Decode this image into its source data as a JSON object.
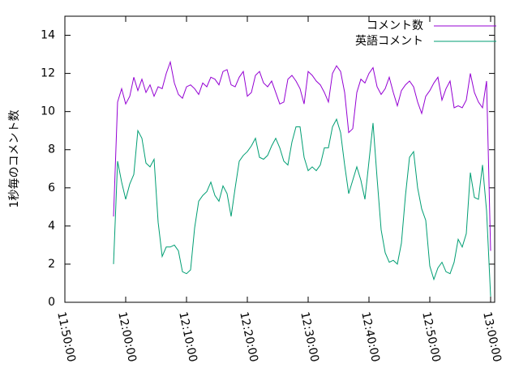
{
  "chart_data": {
    "type": "line",
    "ylabel": "1秒毎のコメント数",
    "x": [
      "11:58:00",
      "11:58:40",
      "11:59:20",
      "12:00:00",
      "12:00:40",
      "12:01:20",
      "12:02:00",
      "12:02:40",
      "12:03:20",
      "12:04:00",
      "12:04:40",
      "12:05:20",
      "12:06:00",
      "12:06:40",
      "12:07:20",
      "12:08:00",
      "12:08:40",
      "12:09:20",
      "12:10:00",
      "12:10:40",
      "12:11:20",
      "12:12:00",
      "12:12:40",
      "12:13:20",
      "12:14:00",
      "12:14:40",
      "12:15:20",
      "12:16:00",
      "12:16:40",
      "12:17:20",
      "12:18:00",
      "12:18:40",
      "12:19:20",
      "12:20:00",
      "12:20:40",
      "12:21:20",
      "12:22:00",
      "12:22:40",
      "12:23:20",
      "12:24:00",
      "12:24:40",
      "12:25:20",
      "12:26:00",
      "12:26:40",
      "12:27:20",
      "12:28:00",
      "12:28:40",
      "12:29:20",
      "12:30:00",
      "12:30:40",
      "12:31:20",
      "12:32:00",
      "12:32:40",
      "12:33:20",
      "12:34:00",
      "12:34:40",
      "12:35:20",
      "12:36:00",
      "12:36:40",
      "12:37:20",
      "12:38:00",
      "12:38:40",
      "12:39:20",
      "12:40:00",
      "12:40:40",
      "12:41:20",
      "12:42:00",
      "12:42:40",
      "12:43:20",
      "12:44:00",
      "12:44:40",
      "12:45:20",
      "12:46:00",
      "12:46:40",
      "12:47:20",
      "12:48:00",
      "12:48:40",
      "12:49:20",
      "12:50:00",
      "12:50:40",
      "12:51:20",
      "12:52:00",
      "12:52:40",
      "12:53:20",
      "12:54:00",
      "12:54:40",
      "12:55:20",
      "12:56:00",
      "12:56:40",
      "12:57:20",
      "12:58:00",
      "12:58:40",
      "12:59:20",
      "13:00:00"
    ],
    "series": [
      {
        "name": "コメント数",
        "color": "#9400d3",
        "values": [
          4.5,
          10.5,
          11.2,
          10.4,
          10.8,
          11.8,
          11.1,
          11.7,
          11.0,
          11.4,
          10.8,
          11.3,
          11.2,
          12.0,
          12.6,
          11.5,
          10.9,
          10.7,
          11.3,
          11.4,
          11.2,
          10.9,
          11.5,
          11.3,
          11.8,
          11.7,
          11.4,
          12.1,
          12.2,
          11.4,
          11.3,
          11.8,
          12.1,
          10.8,
          11.0,
          11.9,
          12.1,
          11.5,
          11.3,
          11.6,
          11.0,
          10.4,
          10.5,
          11.7,
          11.9,
          11.6,
          11.2,
          10.4,
          12.1,
          11.9,
          11.6,
          11.4,
          11.0,
          10.5,
          12.0,
          12.4,
          12.1,
          11.0,
          8.9,
          9.1,
          11.0,
          11.7,
          11.5,
          12.0,
          12.3,
          11.3,
          10.9,
          11.2,
          11.8,
          11.0,
          10.3,
          11.1,
          11.4,
          11.6,
          11.3,
          10.5,
          9.9,
          10.8,
          11.1,
          11.5,
          11.8,
          10.6,
          11.2,
          11.6,
          10.2,
          10.3,
          10.2,
          10.6,
          12.0,
          11.0,
          10.5,
          10.2,
          11.6,
          2.7
        ]
      },
      {
        "name": "英語コメント",
        "color": "#009e73",
        "values": [
          2.0,
          7.4,
          6.3,
          5.4,
          6.2,
          6.7,
          9.0,
          8.6,
          7.3,
          7.1,
          7.5,
          4.2,
          2.4,
          2.9,
          2.9,
          3.0,
          2.7,
          1.6,
          1.5,
          1.7,
          3.9,
          5.3,
          5.6,
          5.8,
          6.3,
          5.6,
          5.3,
          6.1,
          5.7,
          4.5,
          6.0,
          7.4,
          7.7,
          7.9,
          8.2,
          8.6,
          7.6,
          7.5,
          7.7,
          8.2,
          8.6,
          8.1,
          7.4,
          7.2,
          8.4,
          9.2,
          9.2,
          7.6,
          6.9,
          7.1,
          6.9,
          7.2,
          8.1,
          8.1,
          9.2,
          9.6,
          8.9,
          7.2,
          5.7,
          6.4,
          7.1,
          6.4,
          5.4,
          7.4,
          9.4,
          6.5,
          3.8,
          2.6,
          2.1,
          2.2,
          2.0,
          3.1,
          5.6,
          7.6,
          7.9,
          6.0,
          4.9,
          4.3,
          1.9,
          1.2,
          1.8,
          2.1,
          1.6,
          1.5,
          2.1,
          3.3,
          2.9,
          3.6,
          6.8,
          5.5,
          5.4,
          7.2,
          4.8,
          0.3
        ]
      }
    ],
    "xlim": [
      "11:50:00",
      "13:00:40"
    ],
    "xticks": [
      "11:50:00",
      "12:00:00",
      "12:10:00",
      "12:20:00",
      "12:30:00",
      "12:40:00",
      "12:50:00",
      "13:00:00"
    ],
    "ylim": [
      0,
      15
    ],
    "yticks": [
      0,
      2,
      4,
      6,
      8,
      10,
      12,
      14
    ],
    "legend": "top-right"
  }
}
